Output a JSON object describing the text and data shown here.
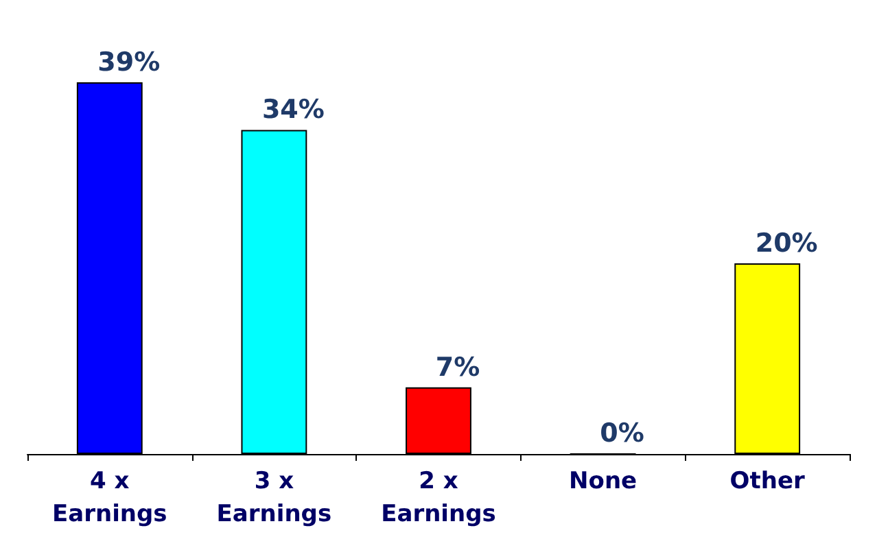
{
  "chart_data": {
    "type": "bar",
    "categories": [
      "4 x\nEarnings",
      "3 x\nEarnings",
      "2 x\nEarnings",
      "None",
      "Other"
    ],
    "values": [
      39,
      34,
      7,
      0,
      20
    ],
    "colors": [
      "#0000ff",
      "#00ffff",
      "#ff0000",
      "#000099",
      "#ffff00"
    ],
    "value_labels": [
      "39%",
      "34%",
      "7%",
      "0%",
      "20%"
    ]
  }
}
